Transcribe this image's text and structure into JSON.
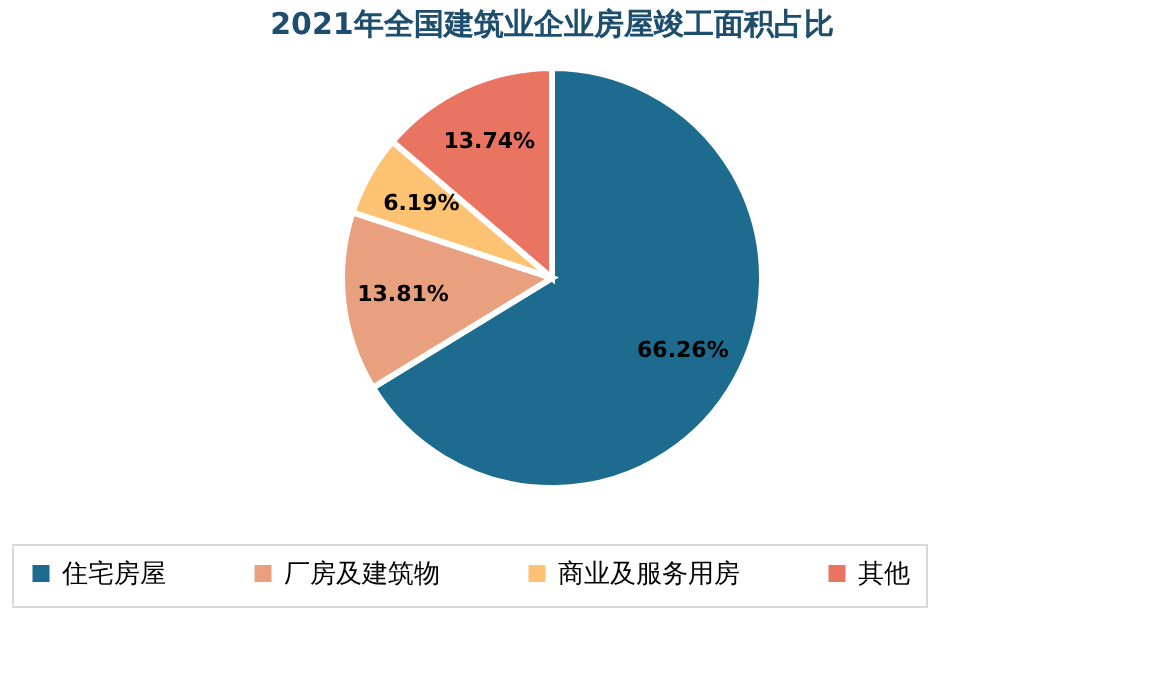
{
  "chart_data": {
    "type": "pie",
    "title": "2021年全国建筑业企业房屋竣工面积占比",
    "categories": [
      "住宅房屋",
      "厂房及建筑物",
      "商业及服务用房",
      "其他"
    ],
    "values": [
      66.26,
      13.81,
      6.19,
      13.74
    ],
    "colors": [
      "#1d6b8e",
      "#e9a07f",
      "#fec273",
      "#e97462"
    ],
    "value_labels": [
      "66.26%",
      "13.81%",
      "6.19%",
      "13.74%"
    ],
    "legend": "bottom"
  }
}
